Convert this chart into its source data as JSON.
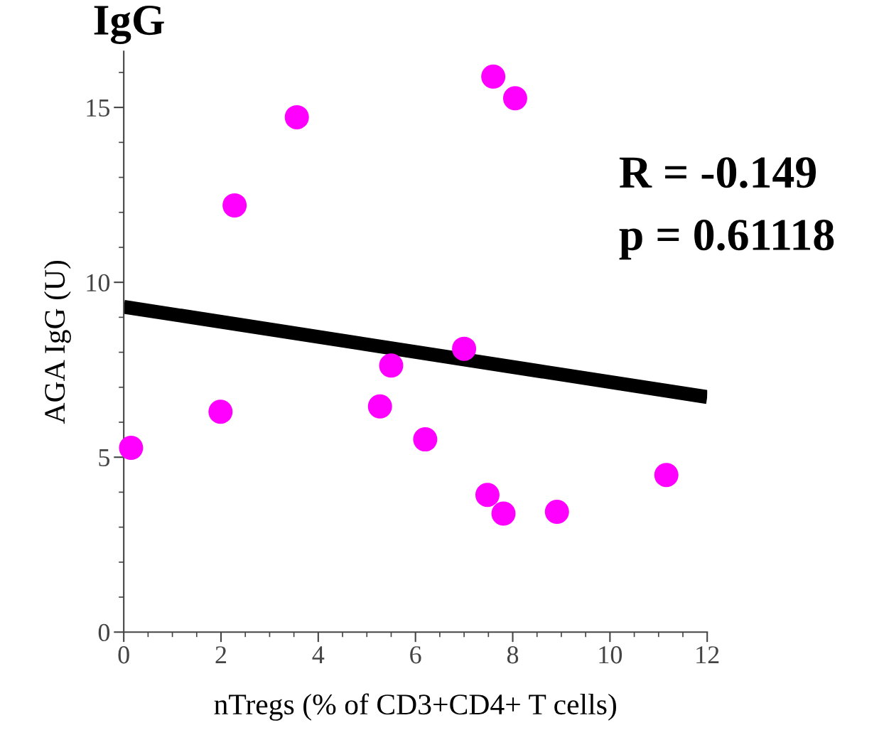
{
  "chart_data": {
    "type": "scatter",
    "title": "IgG",
    "xlabel": "nTregs (% of CD3+CD4+ T cells)",
    "ylabel": "AGA IgG (U)",
    "xlim": [
      0,
      12
    ],
    "ylim": [
      0,
      16.6
    ],
    "xticks": [
      0,
      2,
      4,
      6,
      8,
      10,
      12
    ],
    "yticks": [
      0,
      5,
      10,
      15
    ],
    "grid": false,
    "series": [
      {
        "marker": "circle",
        "color": "#ff00ff",
        "x": [
          0.15,
          1.99,
          2.28,
          3.56,
          5.27,
          5.5,
          6.2,
          7.0,
          7.48,
          7.6,
          7.81,
          8.05,
          8.91,
          11.16
        ],
        "values": [
          5.27,
          6.3,
          12.2,
          14.72,
          6.45,
          7.62,
          5.51,
          8.1,
          3.92,
          15.88,
          3.39,
          15.26,
          3.44,
          4.49
        ]
      },
      {
        "type": "line",
        "marker": "none",
        "color": "#000000",
        "x": [
          0,
          12
        ],
        "values": [
          9.3,
          6.72
        ]
      }
    ],
    "annotations": [
      "R = -0.149",
      "p = 0.61118"
    ]
  }
}
